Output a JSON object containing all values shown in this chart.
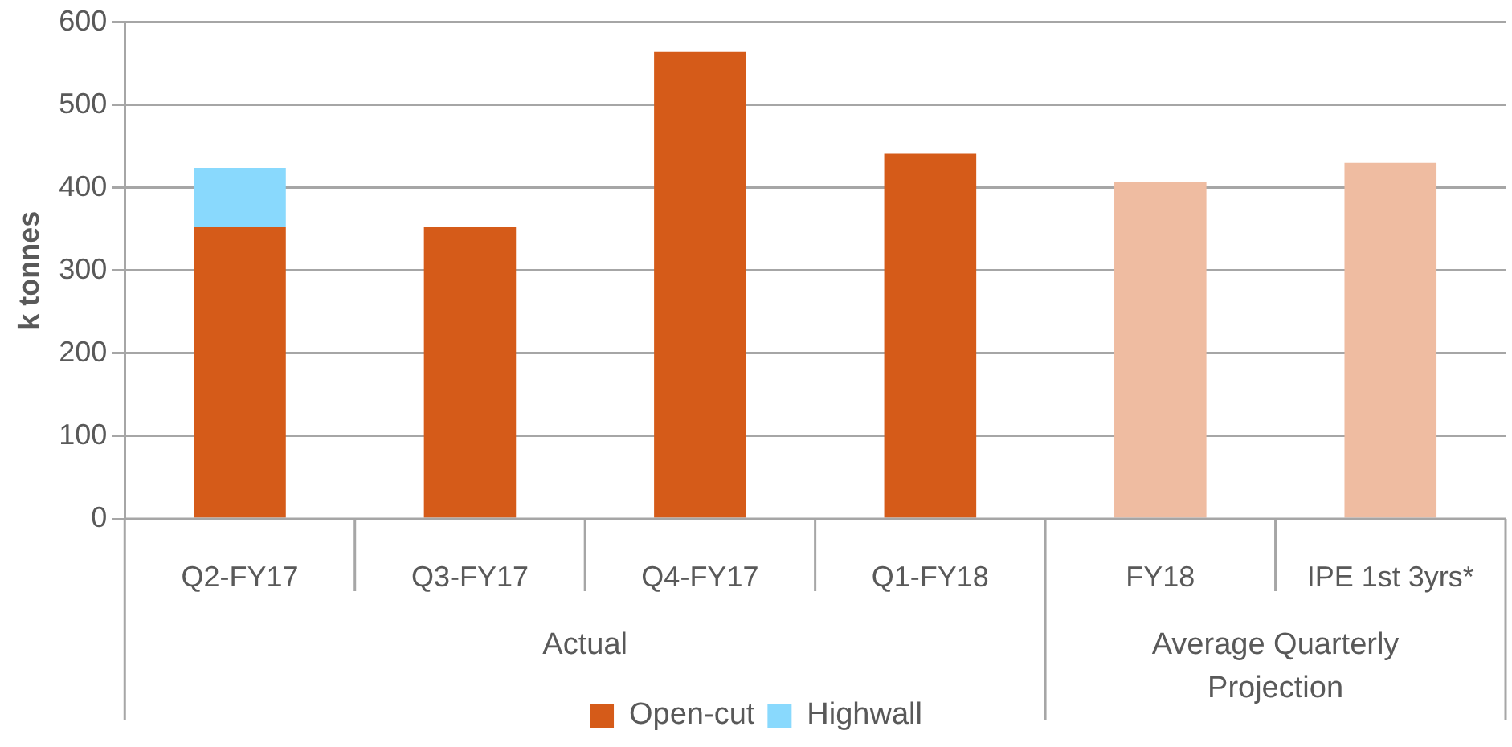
{
  "chart_data": {
    "type": "bar",
    "stacked": true,
    "ylabel": "k tonnes",
    "categories": [
      "Q2-FY17",
      "Q3-FY17",
      "Q4-FY17",
      "Q1-FY18",
      "FY18",
      "IPE 1st 3yrs*"
    ],
    "series": [
      {
        "name": "Open-cut",
        "color": "#d55b19",
        "colors": [
          "#d55b19",
          "#d55b19",
          "#d55b19",
          "#d55b19",
          "#efbca1",
          "#efbca1"
        ],
        "values": [
          353,
          353,
          564,
          441,
          407,
          430
        ]
      },
      {
        "name": "Highwall",
        "color": "#89d9fd",
        "values": [
          71,
          null,
          null,
          null,
          null,
          null
        ]
      }
    ],
    "annotations": [
      "Actual",
      "Average Quarterly Projection"
    ],
    "ylim": [
      0,
      600
    ],
    "yticks": [
      0,
      100,
      200,
      300,
      400,
      500,
      600
    ],
    "grid": "y",
    "legend": "bottom"
  }
}
